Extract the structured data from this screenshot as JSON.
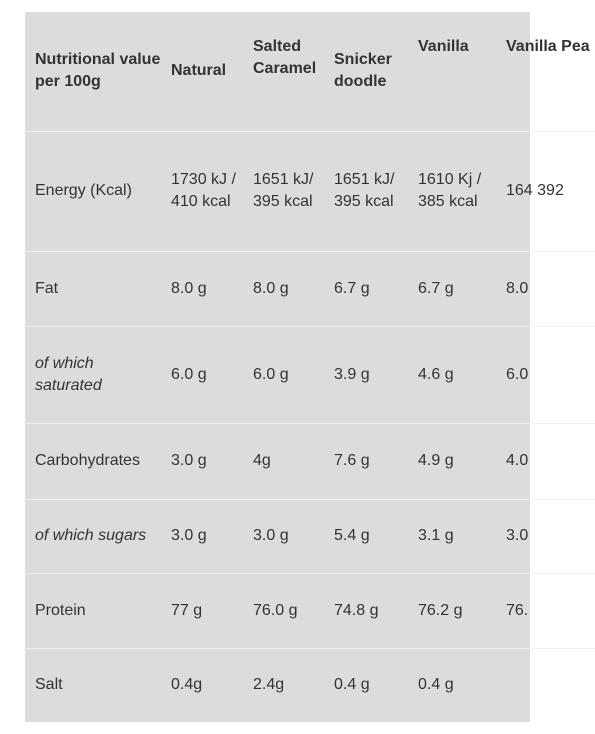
{
  "header": {
    "nutrient": "Nutritional value per 100g",
    "flavors": [
      "Natural",
      "Salted Caramel",
      "Snicker doodle",
      "Vanilla",
      "Vanilla Pea"
    ]
  },
  "rows": [
    {
      "label": "Energy (Kcal)",
      "italic": false,
      "values": [
        "1730 kJ / 410 kcal",
        "1651 kJ/ 395 kcal",
        "1651 kJ/ 395 kcal",
        "1610 Kj / 385 kcal",
        "164 392"
      ]
    },
    {
      "label": "Fat",
      "italic": false,
      "values": [
        "8.0 g",
        "8.0 g",
        "6.7 g",
        "6.7 g",
        "8.0"
      ]
    },
    {
      "label": "of which saturated",
      "italic": true,
      "values": [
        "6.0 g",
        "6.0 g",
        "3.9 g",
        "4.6 g",
        "6.0"
      ]
    },
    {
      "label": "Carbohydrates",
      "italic": false,
      "values": [
        "3.0 g",
        "4g",
        "7.6 g",
        "4.9 g",
        "4.0"
      ]
    },
    {
      "label": "of which sugars",
      "italic": true,
      "values": [
        "3.0 g",
        "3.0 g",
        "5.4 g",
        "3.1 g",
        "3.0"
      ]
    },
    {
      "label": "Protein",
      "italic": false,
      "values": [
        "77 g",
        "76.0 g",
        "74.8 g",
        "76.2 g",
        "76."
      ]
    },
    {
      "label": "Salt",
      "italic": false,
      "values": [
        "0.4g",
        "2.4g",
        "0.4 g",
        "0.4 g",
        ""
      ]
    }
  ],
  "colors": {
    "table_background": "#dcdcdc",
    "row_divider": "#f0f0f0",
    "text": "#333333"
  }
}
